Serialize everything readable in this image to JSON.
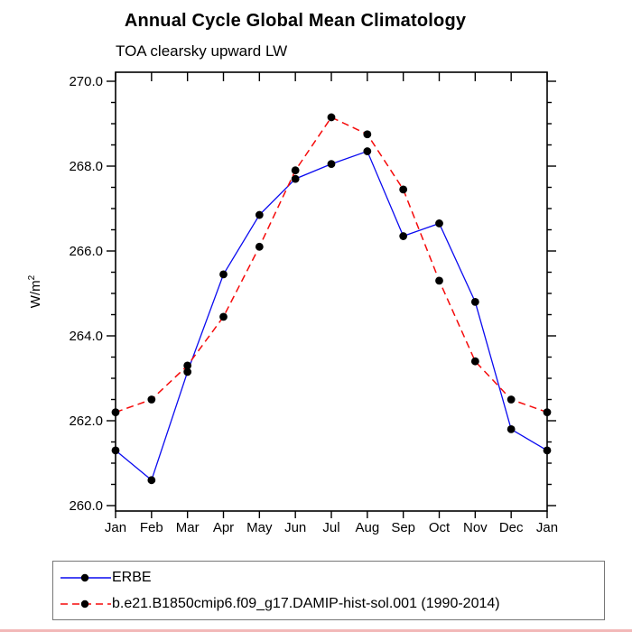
{
  "header": {
    "title": "Annual Cycle Global Mean Climatology",
    "subtitle": "TOA clearsky upward LW"
  },
  "chart_data": {
    "type": "line",
    "title": "Annual Cycle Global Mean Climatology",
    "subtitle": "TOA clearsky upward LW",
    "ylabel": "W/m²",
    "ylabel_base": "W/m",
    "ylabel_exponent": "2",
    "categories": [
      "Jan",
      "Feb",
      "Mar",
      "Apr",
      "May",
      "Jun",
      "Jul",
      "Aug",
      "Sep",
      "Oct",
      "Nov",
      "Dec",
      "Jan"
    ],
    "y_axis": {
      "ticks": [
        260.0,
        262.0,
        264.0,
        266.0,
        268.0,
        270.0
      ],
      "tick_labels": [
        "260.0",
        "262.0",
        "264.0",
        "266.0",
        "268.0",
        "270.0"
      ],
      "minor_step": 0.5,
      "ylim": [
        259.8,
        270.2
      ]
    },
    "grid": "off",
    "legend_position": "bottom-left-box",
    "series": [
      {
        "name": "ERBE",
        "color": "#0a0af0",
        "line_style": "solid",
        "marker": "filled-circle",
        "marker_color": "#000000",
        "values": [
          261.3,
          260.6,
          263.15,
          265.45,
          266.85,
          267.7,
          268.05,
          268.35,
          266.35,
          266.65,
          264.8,
          261.8,
          261.3
        ]
      },
      {
        "name": "b.e21.B1850cmip6.f09_g17.DAMIP-hist-sol.001 (1990-2014)",
        "color": "#f50a0a",
        "line_style": "dashed",
        "marker": "filled-circle",
        "marker_color": "#000000",
        "values": [
          262.2,
          262.5,
          263.3,
          264.45,
          266.1,
          267.9,
          269.15,
          268.75,
          267.45,
          265.3,
          263.4,
          262.5,
          262.2
        ]
      }
    ],
    "colors": {
      "axis": "#000000",
      "text": "#000000",
      "legend_border": "#777777",
      "bottom_strip": "#f2b8b8"
    }
  }
}
